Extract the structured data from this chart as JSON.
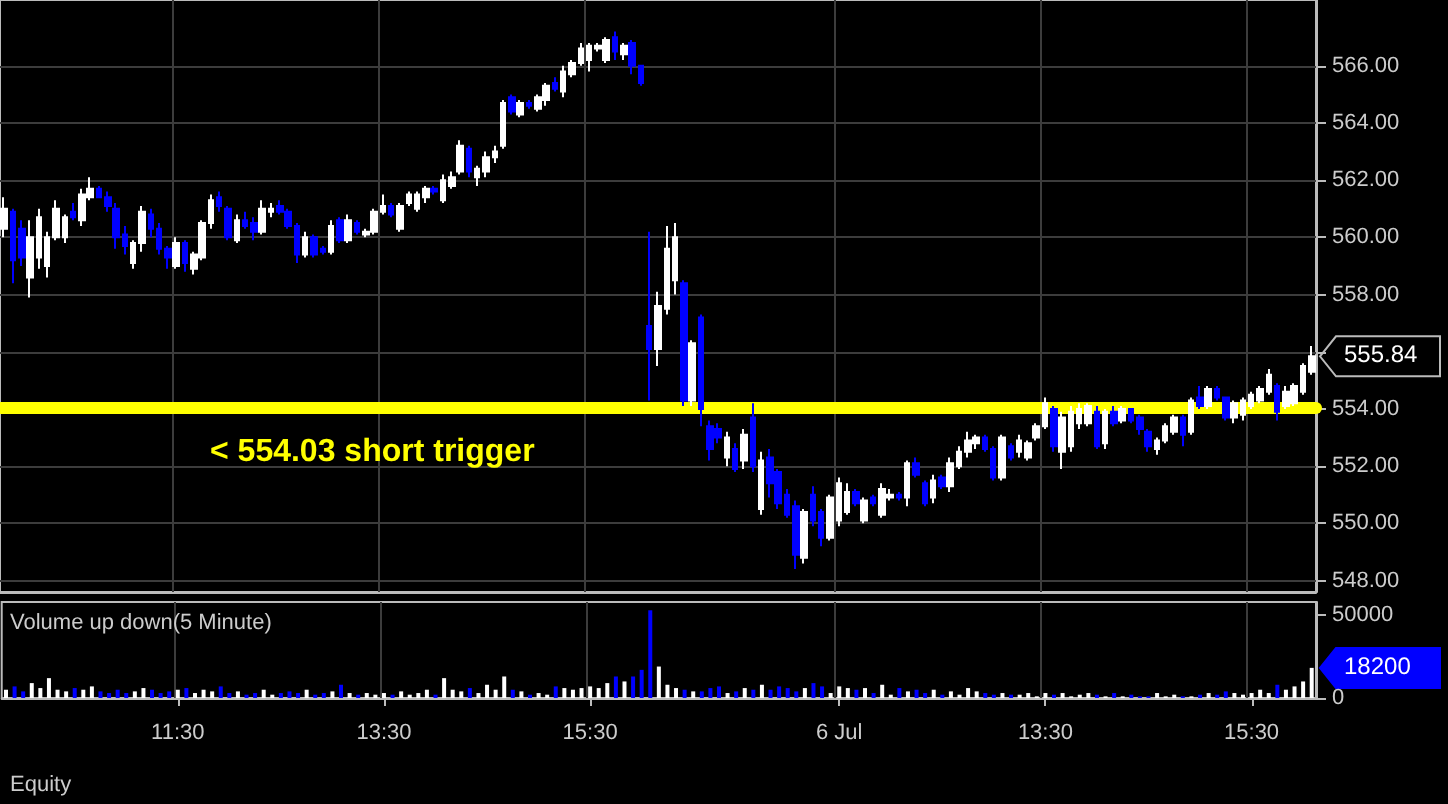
{
  "chart_data": [
    {
      "type": "candlestick",
      "categories": [
        null,
        null,
        null,
        null,
        null,
        null,
        null,
        null,
        null,
        null,
        null,
        null,
        null,
        null,
        null,
        null,
        null,
        null,
        null,
        null,
        null,
        null,
        null,
        null,
        null,
        null,
        null,
        null,
        null,
        null,
        null,
        null,
        null,
        null,
        null,
        null,
        null,
        null,
        null,
        null,
        null,
        null,
        null,
        null,
        null,
        null,
        null,
        null,
        null,
        null,
        null,
        null,
        null,
        null,
        null,
        null,
        null,
        null,
        null,
        null,
        null,
        null,
        null,
        null,
        null,
        null,
        null,
        null,
        null,
        null,
        null,
        null,
        null,
        null,
        null,
        null,
        null,
        null,
        null,
        null,
        null,
        null,
        null,
        null,
        null,
        null,
        null,
        null,
        null,
        null,
        null,
        null,
        null,
        null,
        null,
        null,
        null,
        null,
        null,
        null,
        null,
        null,
        null,
        null,
        null,
        null,
        null,
        null,
        null,
        null,
        null,
        null,
        null,
        null,
        null,
        null,
        null,
        null,
        null,
        null,
        null,
        null,
        null,
        null,
        null,
        null,
        null,
        null,
        null,
        null,
        null,
        null,
        null,
        null,
        null,
        null,
        null,
        null,
        null,
        null,
        null,
        null,
        null,
        null,
        null,
        null,
        null,
        null,
        null,
        null,
        null,
        null,
        null
      ],
      "ohlc": [
        [
          560.3,
          561.4,
          560.0,
          561.0
        ],
        [
          560.9,
          561.0,
          558.4,
          559.2
        ],
        [
          560.3,
          560.6,
          559.0,
          559.3
        ],
        [
          558.6,
          560.6,
          557.9,
          560.0
        ],
        [
          559.3,
          561.0,
          558.9,
          560.7
        ],
        [
          559.0,
          560.2,
          558.6,
          560.0
        ],
        [
          560.0,
          561.3,
          559.9,
          561.0
        ],
        [
          560.0,
          560.8,
          559.8,
          560.7
        ],
        [
          560.9,
          561.2,
          560.6,
          560.7
        ],
        [
          560.6,
          561.7,
          560.4,
          561.5
        ],
        [
          561.4,
          562.1,
          561.3,
          561.7
        ],
        [
          561.7,
          561.8,
          561.4,
          561.4
        ],
        [
          561.4,
          561.6,
          560.9,
          561.1
        ],
        [
          561.0,
          561.2,
          559.6,
          560.0
        ],
        [
          560.1,
          560.4,
          559.4,
          559.7
        ],
        [
          559.1,
          559.9,
          558.9,
          559.8
        ],
        [
          559.8,
          561.1,
          559.5,
          560.9
        ],
        [
          560.8,
          561.0,
          560.0,
          560.3
        ],
        [
          560.3,
          560.5,
          559.4,
          559.6
        ],
        [
          559.6,
          559.7,
          558.9,
          559.3
        ],
        [
          559.0,
          560.0,
          558.9,
          559.8
        ],
        [
          559.8,
          559.9,
          558.8,
          559.1
        ],
        [
          558.9,
          559.5,
          558.7,
          559.4
        ],
        [
          559.3,
          560.6,
          559.2,
          560.5
        ],
        [
          560.5,
          561.5,
          560.3,
          561.3
        ],
        [
          561.4,
          561.6,
          560.9,
          561.1
        ],
        [
          561.0,
          561.1,
          559.9,
          560.0
        ],
        [
          559.9,
          560.8,
          559.8,
          560.6
        ],
        [
          560.6,
          560.9,
          560.3,
          560.4
        ],
        [
          560.5,
          560.7,
          559.9,
          560.2
        ],
        [
          560.2,
          561.3,
          560.1,
          561.0
        ],
        [
          560.9,
          561.2,
          560.7,
          561.0
        ],
        [
          561.1,
          561.3,
          560.8,
          560.9
        ],
        [
          560.9,
          561.0,
          560.3,
          560.4
        ],
        [
          560.4,
          560.5,
          559.1,
          559.4
        ],
        [
          559.4,
          560.2,
          559.3,
          560.0
        ],
        [
          560.0,
          560.1,
          559.3,
          559.4
        ],
        [
          559.6,
          559.7,
          559.4,
          559.5
        ],
        [
          559.5,
          560.6,
          559.4,
          560.4
        ],
        [
          560.6,
          560.7,
          559.8,
          559.9
        ],
        [
          559.9,
          560.8,
          559.8,
          560.6
        ],
        [
          560.5,
          560.6,
          560.1,
          560.2
        ],
        [
          560.1,
          560.3,
          560.0,
          560.2
        ],
        [
          560.2,
          561.0,
          560.1,
          560.9
        ],
        [
          560.9,
          561.5,
          560.8,
          561.1
        ],
        [
          561.1,
          561.2,
          560.7,
          560.8
        ],
        [
          560.3,
          561.2,
          560.2,
          561.1
        ],
        [
          561.2,
          561.6,
          561.1,
          561.5
        ],
        [
          561.0,
          561.6,
          560.9,
          561.5
        ],
        [
          561.4,
          561.8,
          561.2,
          561.7
        ],
        [
          561.7,
          561.8,
          561.5,
          561.6
        ],
        [
          561.3,
          562.2,
          561.2,
          562.0
        ],
        [
          561.8,
          562.3,
          561.7,
          562.1
        ],
        [
          562.3,
          563.4,
          562.2,
          563.2
        ],
        [
          563.1,
          563.2,
          562.1,
          562.3
        ],
        [
          562.1,
          562.5,
          561.8,
          562.4
        ],
        [
          562.3,
          563.0,
          562.1,
          562.8
        ],
        [
          562.8,
          563.2,
          562.6,
          563.0
        ],
        [
          563.2,
          564.8,
          563.1,
          564.7
        ],
        [
          564.9,
          565.0,
          564.3,
          564.4
        ],
        [
          564.3,
          564.8,
          564.2,
          564.7
        ],
        [
          564.7,
          564.8,
          564.5,
          564.6
        ],
        [
          564.5,
          565.0,
          564.4,
          564.9
        ],
        [
          564.8,
          565.4,
          564.6,
          565.3
        ],
        [
          565.4,
          565.6,
          565.1,
          565.2
        ],
        [
          565.1,
          566.0,
          564.9,
          565.8
        ],
        [
          565.7,
          566.2,
          565.6,
          566.1
        ],
        [
          566.1,
          566.8,
          566.0,
          566.6
        ],
        [
          566.2,
          566.8,
          565.8,
          566.7
        ],
        [
          566.6,
          566.8,
          566.5,
          566.7
        ],
        [
          566.2,
          567.0,
          566.1,
          566.9
        ],
        [
          567.0,
          567.2,
          566.2,
          566.5
        ],
        [
          566.4,
          566.8,
          566.2,
          566.7
        ],
        [
          566.8,
          566.9,
          565.7,
          566.0
        ],
        [
          566.0,
          566.0,
          565.3,
          565.4
        ],
        [
          556.9,
          560.2,
          554.3,
          556.1
        ],
        [
          556.1,
          558.1,
          555.5,
          557.6
        ],
        [
          557.5,
          560.4,
          557.3,
          559.6
        ],
        [
          558.5,
          560.5,
          558.0,
          560.0
        ],
        [
          558.4,
          558.5,
          554.1,
          554.3
        ],
        [
          554.3,
          556.4,
          554.1,
          556.3
        ],
        [
          557.2,
          557.3,
          553.4,
          554.0
        ],
        [
          553.4,
          553.6,
          552.2,
          552.6
        ],
        [
          553.3,
          553.5,
          552.8,
          553.0
        ],
        [
          552.3,
          553.2,
          552.0,
          553.0
        ],
        [
          552.6,
          552.8,
          551.8,
          551.9
        ],
        [
          552.2,
          553.3,
          551.9,
          553.1
        ],
        [
          553.7,
          554.2,
          551.8,
          552.0
        ],
        [
          550.5,
          552.5,
          550.3,
          552.2
        ],
        [
          552.3,
          552.6,
          550.9,
          551.4
        ],
        [
          551.8,
          551.9,
          550.5,
          550.7
        ],
        [
          551.0,
          551.2,
          550.2,
          550.3
        ],
        [
          550.6,
          550.8,
          548.4,
          548.9
        ],
        [
          548.8,
          550.5,
          548.6,
          550.4
        ],
        [
          551.0,
          551.3,
          549.9,
          550.1
        ],
        [
          550.4,
          550.5,
          549.2,
          549.5
        ],
        [
          549.5,
          551.0,
          549.4,
          550.9
        ],
        [
          550.1,
          551.6,
          549.9,
          551.4
        ],
        [
          550.4,
          551.4,
          550.3,
          551.1
        ],
        [
          551.1,
          551.2,
          550.6,
          550.7
        ],
        [
          550.1,
          550.9,
          550.0,
          550.8
        ],
        [
          550.9,
          551.0,
          550.6,
          550.7
        ],
        [
          550.3,
          551.4,
          550.2,
          551.2
        ],
        [
          550.9,
          551.2,
          550.8,
          551.0
        ],
        [
          551.0,
          551.1,
          550.8,
          550.9
        ],
        [
          550.9,
          552.2,
          550.6,
          552.1
        ],
        [
          552.1,
          552.3,
          551.6,
          551.7
        ],
        [
          551.4,
          551.5,
          550.6,
          550.7
        ],
        [
          550.9,
          551.7,
          550.7,
          551.5
        ],
        [
          551.6,
          551.7,
          551.2,
          551.3
        ],
        [
          551.3,
          552.3,
          551.1,
          552.1
        ],
        [
          552.0,
          552.7,
          551.9,
          552.5
        ],
        [
          552.5,
          553.2,
          552.3,
          552.9
        ],
        [
          552.8,
          553.1,
          552.6,
          553.0
        ],
        [
          553.0,
          553.1,
          552.5,
          552.6
        ],
        [
          552.6,
          552.7,
          551.5,
          551.6
        ],
        [
          551.6,
          553.1,
          551.5,
          553.0
        ],
        [
          552.7,
          552.8,
          552.2,
          552.3
        ],
        [
          552.5,
          553.1,
          552.3,
          552.9
        ],
        [
          552.3,
          552.9,
          552.2,
          552.8
        ],
        [
          553.0,
          553.5,
          552.9,
          553.4
        ],
        [
          553.4,
          554.4,
          553.3,
          554.2
        ],
        [
          554.0,
          554.1,
          552.5,
          552.7
        ],
        [
          552.5,
          553.9,
          551.9,
          553.7
        ],
        [
          552.7,
          554.1,
          552.5,
          553.9
        ],
        [
          553.5,
          554.2,
          553.3,
          554.0
        ],
        [
          553.5,
          554.2,
          553.4,
          554.1
        ],
        [
          553.9,
          554.1,
          552.6,
          552.7
        ],
        [
          552.8,
          554.0,
          552.6,
          553.9
        ],
        [
          553.9,
          554.1,
          553.4,
          553.5
        ],
        [
          553.6,
          554.1,
          553.5,
          554.0
        ],
        [
          554.0,
          554.0,
          553.5,
          553.6
        ],
        [
          553.7,
          553.8,
          553.1,
          553.3
        ],
        [
          553.2,
          553.3,
          552.5,
          552.7
        ],
        [
          552.6,
          553.0,
          552.4,
          552.9
        ],
        [
          552.9,
          553.5,
          552.8,
          553.4
        ],
        [
          553.2,
          553.8,
          553.1,
          553.7
        ],
        [
          553.7,
          553.8,
          552.7,
          553.1
        ],
        [
          553.2,
          554.4,
          553.1,
          554.3
        ],
        [
          554.4,
          554.8,
          554.0,
          554.1
        ],
        [
          554.1,
          554.8,
          554.0,
          554.7
        ],
        [
          554.7,
          554.8,
          554.3,
          554.4
        ],
        [
          554.4,
          554.4,
          553.6,
          553.7
        ],
        [
          553.7,
          554.3,
          553.5,
          554.2
        ],
        [
          553.8,
          554.4,
          553.6,
          554.3
        ],
        [
          554.1,
          554.6,
          554.0,
          554.5
        ],
        [
          554.3,
          554.8,
          554.2,
          554.7
        ],
        [
          554.6,
          555.4,
          554.5,
          555.2
        ],
        [
          554.8,
          554.9,
          553.6,
          553.9
        ],
        [
          554.1,
          554.8,
          554.0,
          554.6
        ],
        [
          554.2,
          554.9,
          554.1,
          554.8
        ],
        [
          554.6,
          555.6,
          554.5,
          555.5
        ],
        [
          555.3,
          556.2,
          555.2,
          555.84
        ]
      ],
      "colors": [
        "#ffffff",
        "#0000ff",
        "#0000ff",
        "#ffffff",
        "#ffffff",
        "#ffffff",
        "#ffffff",
        "#ffffff",
        "#0000ff",
        "#ffffff",
        "#ffffff",
        "#0000ff",
        "#0000ff",
        "#0000ff",
        "#0000ff",
        "#ffffff",
        "#ffffff",
        "#0000ff",
        "#0000ff",
        "#0000ff",
        "#ffffff",
        "#0000ff",
        "#ffffff",
        "#ffffff",
        "#ffffff",
        "#0000ff",
        "#0000ff",
        "#ffffff",
        "#0000ff",
        "#0000ff",
        "#ffffff",
        "#ffffff",
        "#0000ff",
        "#0000ff",
        "#0000ff",
        "#ffffff",
        "#0000ff",
        "#0000ff",
        "#ffffff",
        "#0000ff",
        "#ffffff",
        "#0000ff",
        "#ffffff",
        "#ffffff",
        "#ffffff",
        "#0000ff",
        "#ffffff",
        "#ffffff",
        "#ffffff",
        "#ffffff",
        "#0000ff",
        "#ffffff",
        "#ffffff",
        "#ffffff",
        "#0000ff",
        "#ffffff",
        "#ffffff",
        "#ffffff",
        "#ffffff",
        "#0000ff",
        "#ffffff",
        "#0000ff",
        "#ffffff",
        "#ffffff",
        "#0000ff",
        "#ffffff",
        "#ffffff",
        "#ffffff",
        "#ffffff",
        "#ffffff",
        "#ffffff",
        "#0000ff",
        "#ffffff",
        "#0000ff",
        "#0000ff",
        "#0000ff",
        "#ffffff",
        "#ffffff",
        "#ffffff",
        "#0000ff",
        "#ffffff",
        "#0000ff",
        "#0000ff",
        "#0000ff",
        "#ffffff",
        "#0000ff",
        "#ffffff",
        "#0000ff",
        "#ffffff",
        "#0000ff",
        "#0000ff",
        "#0000ff",
        "#0000ff",
        "#ffffff",
        "#0000ff",
        "#0000ff",
        "#ffffff",
        "#ffffff",
        "#ffffff",
        "#0000ff",
        "#ffffff",
        "#0000ff",
        "#ffffff",
        "#ffffff",
        "#0000ff",
        "#ffffff",
        "#0000ff",
        "#0000ff",
        "#ffffff",
        "#0000ff",
        "#ffffff",
        "#ffffff",
        "#ffffff",
        "#ffffff",
        "#0000ff",
        "#0000ff",
        "#ffffff",
        "#0000ff",
        "#ffffff",
        "#ffffff",
        "#ffffff",
        "#ffffff",
        "#0000ff",
        "#ffffff",
        "#ffffff",
        "#ffffff",
        "#ffffff",
        "#0000ff",
        "#ffffff",
        "#0000ff",
        "#ffffff",
        "#0000ff",
        "#0000ff",
        "#0000ff",
        "#ffffff",
        "#ffffff",
        "#ffffff",
        "#0000ff",
        "#ffffff",
        "#0000ff",
        "#ffffff",
        "#0000ff",
        "#0000ff",
        "#ffffff",
        "#ffffff",
        "#ffffff",
        "#ffffff",
        "#ffffff",
        "#0000ff",
        "#ffffff",
        "#ffffff",
        "#ffffff",
        "#ffffff"
      ],
      "ylim": [
        547.6,
        568.3
      ],
      "yticks": [
        {
          "value": 548,
          "label": "548.00"
        },
        {
          "value": 550,
          "label": "550.00"
        },
        {
          "value": 552,
          "label": "552.00"
        },
        {
          "value": 554,
          "label": "554.00"
        },
        {
          "value": 556,
          "label": null
        },
        {
          "value": 558,
          "label": "558.00"
        },
        {
          "value": 560,
          "label": "560.00"
        },
        {
          "value": 562,
          "label": "562.00"
        },
        {
          "value": 564,
          "label": "564.00"
        },
        {
          "value": 566,
          "label": "566.00"
        }
      ],
      "grid": true,
      "tick_labels": "y",
      "ref_lines": [
        {
          "axis": "y",
          "value": 554.03,
          "label": "< 554.03 short trigger",
          "color": "#ffff00"
        }
      ],
      "annotations": [
        "555.84"
      ]
    },
    {
      "type": "bar",
      "title": "Volume up down(5 Minute)",
      "categories": [
        null,
        null,
        null,
        null,
        null,
        null,
        null,
        null,
        null,
        null,
        null,
        null,
        null,
        null,
        null,
        null,
        null,
        null,
        null,
        null,
        "11:30",
        null,
        null,
        null,
        null,
        null,
        null,
        null,
        null,
        null,
        null,
        null,
        null,
        null,
        null,
        null,
        null,
        null,
        null,
        null,
        null,
        null,
        null,
        null,
        "13:30",
        null,
        null,
        null,
        null,
        null,
        null,
        null,
        null,
        null,
        null,
        null,
        null,
        null,
        null,
        null,
        null,
        null,
        null,
        null,
        null,
        null,
        null,
        null,
        "15:30",
        null,
        null,
        null,
        null,
        null,
        null,
        null,
        null,
        null,
        null,
        null,
        null,
        null,
        null,
        null,
        null,
        null,
        null,
        null,
        null,
        null,
        null,
        null,
        null,
        null,
        null,
        null,
        null,
        "6 Jul",
        null,
        null,
        null,
        null,
        null,
        null,
        null,
        null,
        null,
        null,
        null,
        null,
        null,
        null,
        null,
        null,
        null,
        null,
        null,
        null,
        null,
        null,
        null,
        "13:30",
        null,
        null,
        null,
        null,
        null,
        null,
        null,
        null,
        null,
        null,
        null,
        null,
        null,
        null,
        null,
        null,
        null,
        null,
        null,
        null,
        null,
        null,
        null,
        "15:30",
        null,
        null,
        null,
        null,
        null,
        null,
        null
      ],
      "values": [
        5000,
        7000,
        4000,
        9000,
        6000,
        12000,
        5000,
        4000,
        6000,
        5000,
        7000,
        4000,
        3000,
        5000,
        3000,
        4000,
        6000,
        5000,
        3000,
        4000,
        5000,
        6000,
        3000,
        5000,
        4000,
        7000,
        3000,
        4000,
        2000,
        3000,
        5000,
        2000,
        3000,
        4000,
        3000,
        5000,
        2000,
        3000,
        4000,
        8000,
        3000,
        2000,
        3000,
        2000,
        3000,
        2000,
        4000,
        2000,
        3000,
        5000,
        2000,
        12000,
        5000,
        4000,
        6000,
        3000,
        8000,
        5000,
        13000,
        5000,
        4000,
        2000,
        3000,
        2000,
        7000,
        6000,
        5000,
        6000,
        7000,
        6000,
        9000,
        13000,
        10000,
        13000,
        17000,
        53000,
        19000,
        8000,
        6000,
        5000,
        4000,
        4000,
        6000,
        7000,
        3000,
        4000,
        6000,
        5000,
        8000,
        5000,
        7000,
        6000,
        4000,
        6000,
        9000,
        7000,
        3000,
        7000,
        6000,
        5000,
        6000,
        3000,
        8000,
        2000,
        6000,
        4000,
        5000,
        3000,
        5000,
        2000,
        4000,
        2000,
        6000,
        4000,
        3000,
        2000,
        3000,
        2000,
        2000,
        3000,
        1000,
        3000,
        2000,
        3000,
        1000,
        2000,
        3000,
        2000,
        1000,
        3000,
        1000,
        2000,
        1000,
        1000,
        3000,
        1000,
        2000,
        1000,
        1000,
        2000,
        3000,
        2000,
        4000,
        3000,
        2000,
        3000,
        5000,
        3000,
        8000,
        5000,
        7000,
        10000,
        18200
      ],
      "colors": [
        "#ffffff",
        "#0000ff",
        "#0000ff",
        "#ffffff",
        "#ffffff",
        "#ffffff",
        "#ffffff",
        "#ffffff",
        "#0000ff",
        "#ffffff",
        "#ffffff",
        "#0000ff",
        "#0000ff",
        "#0000ff",
        "#0000ff",
        "#ffffff",
        "#ffffff",
        "#0000ff",
        "#0000ff",
        "#0000ff",
        "#ffffff",
        "#0000ff",
        "#ffffff",
        "#ffffff",
        "#ffffff",
        "#0000ff",
        "#0000ff",
        "#ffffff",
        "#0000ff",
        "#0000ff",
        "#ffffff",
        "#ffffff",
        "#0000ff",
        "#0000ff",
        "#0000ff",
        "#ffffff",
        "#0000ff",
        "#0000ff",
        "#ffffff",
        "#0000ff",
        "#ffffff",
        "#0000ff",
        "#ffffff",
        "#ffffff",
        "#ffffff",
        "#0000ff",
        "#ffffff",
        "#ffffff",
        "#ffffff",
        "#ffffff",
        "#0000ff",
        "#ffffff",
        "#ffffff",
        "#ffffff",
        "#0000ff",
        "#ffffff",
        "#ffffff",
        "#ffffff",
        "#ffffff",
        "#0000ff",
        "#ffffff",
        "#0000ff",
        "#ffffff",
        "#ffffff",
        "#0000ff",
        "#ffffff",
        "#ffffff",
        "#ffffff",
        "#ffffff",
        "#ffffff",
        "#ffffff",
        "#0000ff",
        "#ffffff",
        "#0000ff",
        "#0000ff",
        "#0000ff",
        "#ffffff",
        "#ffffff",
        "#ffffff",
        "#0000ff",
        "#ffffff",
        "#0000ff",
        "#0000ff",
        "#0000ff",
        "#ffffff",
        "#0000ff",
        "#ffffff",
        "#0000ff",
        "#ffffff",
        "#0000ff",
        "#0000ff",
        "#0000ff",
        "#0000ff",
        "#ffffff",
        "#0000ff",
        "#0000ff",
        "#ffffff",
        "#ffffff",
        "#ffffff",
        "#0000ff",
        "#ffffff",
        "#0000ff",
        "#ffffff",
        "#ffffff",
        "#0000ff",
        "#ffffff",
        "#0000ff",
        "#0000ff",
        "#ffffff",
        "#0000ff",
        "#ffffff",
        "#ffffff",
        "#ffffff",
        "#ffffff",
        "#0000ff",
        "#0000ff",
        "#ffffff",
        "#0000ff",
        "#ffffff",
        "#ffffff",
        "#ffffff",
        "#ffffff",
        "#0000ff",
        "#ffffff",
        "#ffffff",
        "#ffffff",
        "#ffffff",
        "#0000ff",
        "#ffffff",
        "#0000ff",
        "#ffffff",
        "#0000ff",
        "#0000ff",
        "#0000ff",
        "#ffffff",
        "#ffffff",
        "#ffffff",
        "#0000ff",
        "#ffffff",
        "#0000ff",
        "#ffffff",
        "#0000ff",
        "#0000ff",
        "#ffffff",
        "#ffffff",
        "#ffffff",
        "#ffffff",
        "#ffffff",
        "#0000ff",
        "#ffffff",
        "#ffffff",
        "#ffffff",
        "#ffffff"
      ],
      "ylim": [
        0,
        58000
      ],
      "yticks": [
        0,
        50000
      ],
      "grid": "x",
      "annotations": [
        "18200",
        "Equity"
      ]
    }
  ]
}
